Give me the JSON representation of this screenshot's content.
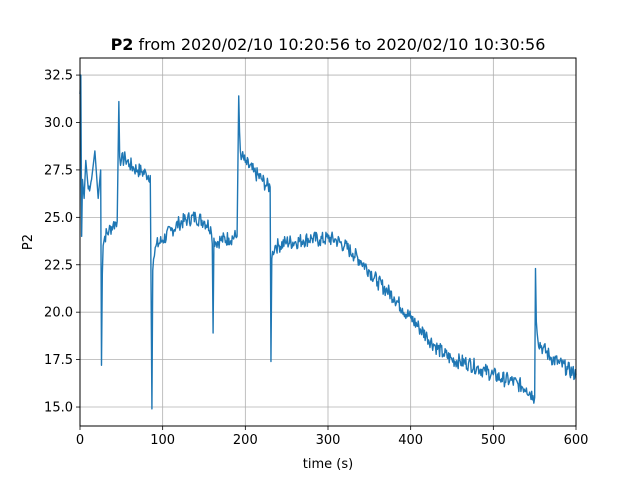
{
  "chart_data": {
    "type": "line",
    "title_bold": "P2",
    "title_rest": " from 2020/02/10 10:20:56 to 2020/02/10 10:30:56",
    "xlabel": "time (s)",
    "ylabel": "P2",
    "xlim": [
      0,
      600
    ],
    "ylim": [
      14.0,
      33.4
    ],
    "xticks": [
      0,
      100,
      200,
      300,
      400,
      500,
      600
    ],
    "yticks": [
      15.0,
      17.5,
      20.0,
      22.5,
      25.0,
      27.5,
      30.0,
      32.5
    ],
    "ytick_labels": [
      "15.0",
      "17.5",
      "20.0",
      "22.5",
      "25.0",
      "27.5",
      "30.0",
      "32.5"
    ],
    "grid": true,
    "line_color": "#1f77b4",
    "series": [
      {
        "x": [
          0,
          1,
          2,
          3,
          5,
          7,
          10,
          14,
          18,
          22,
          25,
          26,
          27,
          28,
          30,
          35,
          40,
          45,
          47,
          48,
          50,
          55,
          60,
          65,
          70,
          75,
          80,
          85,
          87,
          88,
          89,
          92,
          100,
          110,
          120,
          130,
          140,
          150,
          158,
          160,
          161,
          162,
          164,
          170,
          180,
          190,
          192,
          193,
          194,
          196,
          200,
          210,
          220,
          225,
          230,
          231,
          232,
          233,
          236,
          240,
          250,
          260,
          270,
          280,
          290,
          300,
          310,
          320,
          330,
          340,
          350,
          360,
          370,
          380,
          390,
          400,
          410,
          420,
          430,
          440,
          450,
          460,
          470,
          480,
          490,
          500,
          510,
          520,
          530,
          540,
          548,
          550,
          551,
          552,
          553,
          554,
          560,
          570,
          580,
          590,
          600
        ],
        "y": [
          31.5,
          32.5,
          24.0,
          27.0,
          26.0,
          28.0,
          26.5,
          27.0,
          28.5,
          26.0,
          27.5,
          17.2,
          22.0,
          23.5,
          24.0,
          24.3,
          24.6,
          24.8,
          31.1,
          28.2,
          28.0,
          28.1,
          27.8,
          27.6,
          27.5,
          27.4,
          27.3,
          27.2,
          14.9,
          22.2,
          22.8,
          23.5,
          23.8,
          24.3,
          24.7,
          24.9,
          25.0,
          24.8,
          24.5,
          23.6,
          18.9,
          23.9,
          23.7,
          23.8,
          23.9,
          24.0,
          31.4,
          29.5,
          28.5,
          28.2,
          27.9,
          27.4,
          27.0,
          26.7,
          26.6,
          17.4,
          22.8,
          23.2,
          23.5,
          23.5,
          23.7,
          23.7,
          23.8,
          23.9,
          23.8,
          23.9,
          23.8,
          23.5,
          23.1,
          22.7,
          22.2,
          21.6,
          21.2,
          20.8,
          20.2,
          19.7,
          19.2,
          18.7,
          18.2,
          17.8,
          17.5,
          17.4,
          17.3,
          17.1,
          16.9,
          16.7,
          16.5,
          16.4,
          16.2,
          16.0,
          15.6,
          15.5,
          22.3,
          19.5,
          18.9,
          18.5,
          18.1,
          17.6,
          17.3,
          17.0,
          16.7
        ]
      }
    ]
  }
}
